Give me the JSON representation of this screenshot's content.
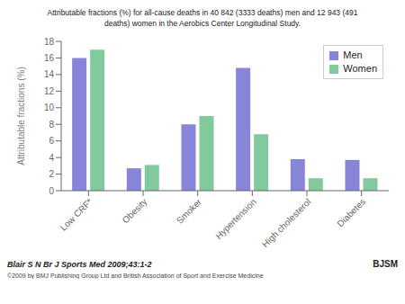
{
  "chart_data": {
    "type": "bar",
    "title": "Attributable fractions (%) for all-cause deaths in 40 842 (3333 deaths) men and 12 943 (491\ndeaths) women in the Aerobics Center Longitudinal Study.",
    "categories": [
      "Low CRF*",
      "Obesity",
      "Smoker",
      "Hypertension",
      "High cholesterol",
      "Diabetes"
    ],
    "series": [
      {
        "name": "Men",
        "color": "#8884d8",
        "values": [
          16.0,
          2.7,
          8.0,
          14.8,
          3.8,
          3.7
        ]
      },
      {
        "name": "Women",
        "color": "#82ca9d",
        "values": [
          17.0,
          3.1,
          9.0,
          6.8,
          1.5,
          1.5
        ]
      }
    ],
    "ylabel": "Attributable fractions (%)",
    "ylim": [
      0,
      18
    ],
    "yticks": [
      0,
      2,
      4,
      6,
      8,
      10,
      12,
      14,
      16,
      18
    ],
    "grid": false,
    "legend": "upper right",
    "annotations": [
      "Blair S N Br J Sports Med 2009;43:1-2",
      "©2009 by BMJ Publishing Group Ltd and British Association of Sport and Exercise Medicine",
      "BJSM"
    ]
  }
}
